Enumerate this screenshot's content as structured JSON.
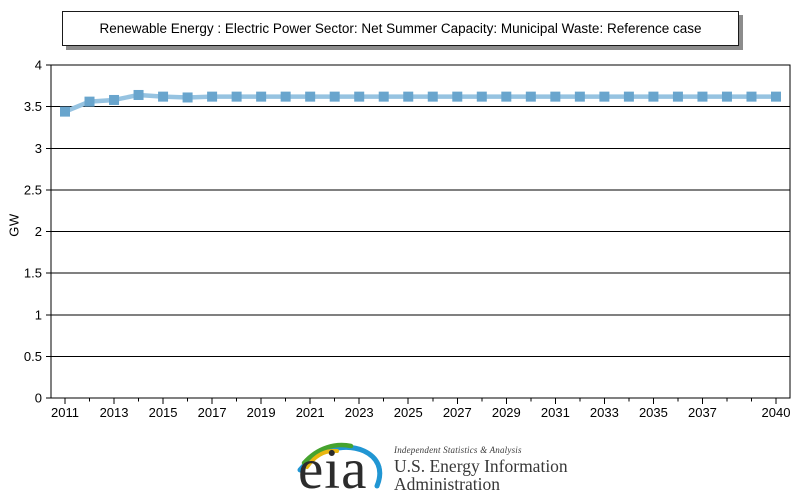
{
  "title_box": {
    "text": "Renewable Energy : Electric Power Sector: Net Summer Capacity: Municipal Waste: Reference case"
  },
  "chart_data": {
    "type": "line",
    "title": "Renewable Energy : Electric Power Sector: Net Summer Capacity: Municipal Waste: Reference case",
    "xlabel": "",
    "ylabel": "GW",
    "ylim": [
      0,
      4
    ],
    "yticks": [
      0,
      0.5,
      1,
      1.5,
      2,
      2.5,
      3,
      3.5,
      4
    ],
    "ytick_labels": [
      "0",
      "0.5",
      "1",
      "1.5",
      "2",
      "2.5",
      "3",
      "3.5",
      "4"
    ],
    "xlim": [
      2011,
      2040
    ],
    "xticks_labeled": [
      2011,
      2013,
      2015,
      2017,
      2019,
      2021,
      2023,
      2025,
      2027,
      2029,
      2031,
      2033,
      2035,
      2037,
      2040
    ],
    "grid": "horizontal",
    "legend": "none",
    "series": [
      {
        "name": "Municipal Waste: Reference case",
        "marker": "square",
        "line_color": "#96c3e1",
        "marker_color": "#69a5cd",
        "x": [
          2011,
          2012,
          2013,
          2014,
          2015,
          2016,
          2017,
          2018,
          2019,
          2020,
          2021,
          2022,
          2023,
          2024,
          2025,
          2026,
          2027,
          2028,
          2029,
          2030,
          2031,
          2032,
          2033,
          2034,
          2035,
          2036,
          2037,
          2038,
          2039,
          2040
        ],
        "y": [
          3.44,
          3.56,
          3.58,
          3.64,
          3.62,
          3.61,
          3.62,
          3.62,
          3.62,
          3.62,
          3.62,
          3.62,
          3.62,
          3.62,
          3.62,
          3.62,
          3.62,
          3.62,
          3.62,
          3.62,
          3.62,
          3.62,
          3.62,
          3.62,
          3.62,
          3.62,
          3.62,
          3.62,
          3.62,
          3.62
        ]
      }
    ],
    "axis_color": "#000000",
    "grid_color": "#000000"
  },
  "footer": {
    "logo_text": "eia",
    "tagline": "Independent Statistics & Analysis",
    "org_line1": "U.S. Energy Information",
    "org_line2": "Administration",
    "logo_colors": {
      "yellow": "#e9b70f",
      "green": "#46a32e",
      "blue": "#2196d3",
      "text": "#2c2c2c"
    }
  }
}
